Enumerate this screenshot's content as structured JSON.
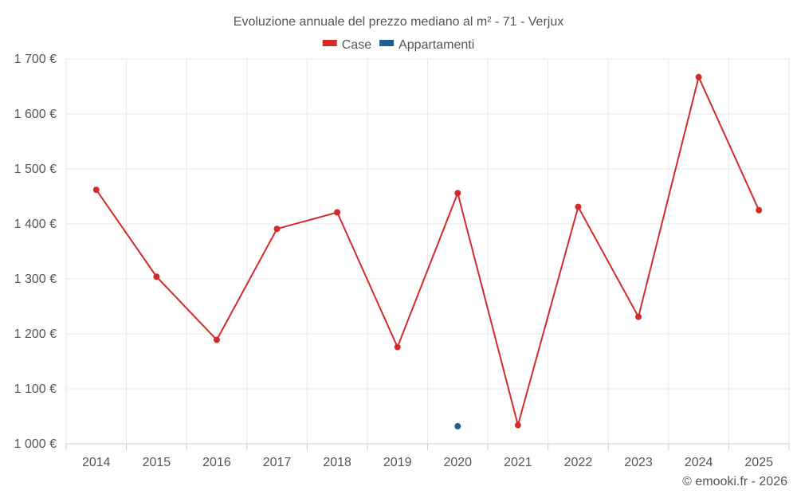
{
  "chart_data": {
    "type": "line",
    "title": "Evoluzione annuale del prezzo mediano al m² - 71 - Verjux",
    "categories": [
      "2014",
      "2015",
      "2016",
      "2017",
      "2018",
      "2019",
      "2020",
      "2021",
      "2022",
      "2023",
      "2024",
      "2025"
    ],
    "series": [
      {
        "name": "Case",
        "color": "#d32a2a",
        "values": [
          1462,
          1304,
          1189,
          1391,
          1421,
          1176,
          1456,
          1034,
          1431,
          1231,
          1667,
          1425
        ]
      },
      {
        "name": "Appartamenti",
        "color": "#1f5f96",
        "values": [
          null,
          null,
          null,
          null,
          null,
          null,
          1032,
          null,
          null,
          null,
          null,
          null
        ]
      }
    ],
    "ylim": [
      1000,
      1700
    ],
    "yticks": [
      1000,
      1100,
      1200,
      1300,
      1400,
      1500,
      1600,
      1700
    ],
    "ytick_labels": [
      "1 000 €",
      "1 100 €",
      "1 200 €",
      "1 300 €",
      "1 400 €",
      "1 500 €",
      "1 600 €",
      "1 700 €"
    ],
    "legend_position": "top-center",
    "grid": true
  },
  "credit": "© emooki.fr - 2026"
}
